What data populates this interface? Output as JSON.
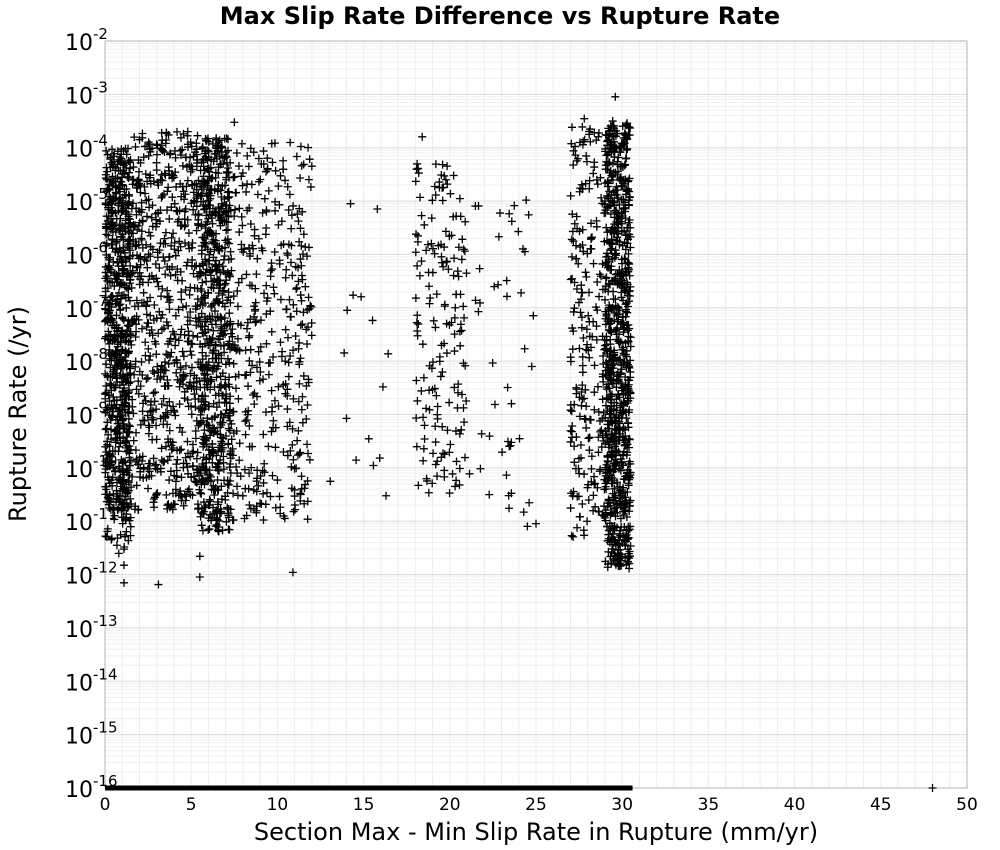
{
  "chart_data": {
    "type": "scatter",
    "title": "Max Slip Rate Difference vs Rupture Rate",
    "xlabel": "Section Max - Min Slip Rate in Rupture (mm/yr)",
    "ylabel": "Rupture Rate (/yr)",
    "xlim": [
      0,
      50
    ],
    "ylim": [
      1e-16,
      0.01
    ],
    "yscale": "log",
    "grid": true,
    "marker": "plus",
    "marker_color": "#000000",
    "x_ticks": [
      "0",
      "5",
      "10",
      "15",
      "20",
      "25",
      "30",
      "35",
      "40",
      "45",
      "50"
    ],
    "y_ticks": [
      {
        "base": "10",
        "exp": "-16"
      },
      {
        "base": "10",
        "exp": "-15"
      },
      {
        "base": "10",
        "exp": "-14"
      },
      {
        "base": "10",
        "exp": "-13"
      },
      {
        "base": "10",
        "exp": "-12"
      },
      {
        "base": "10",
        "exp": "-11"
      },
      {
        "base": "10",
        "exp": "-10"
      },
      {
        "base": "10",
        "exp": "-9"
      },
      {
        "base": "10",
        "exp": "-8"
      },
      {
        "base": "10",
        "exp": "-7"
      },
      {
        "base": "10",
        "exp": "-6"
      },
      {
        "base": "10",
        "exp": "-5"
      },
      {
        "base": "10",
        "exp": "-4"
      },
      {
        "base": "10",
        "exp": "-3"
      },
      {
        "base": "10",
        "exp": "-2"
      }
    ],
    "clusters": [
      {
        "x_range": [
          0,
          1.5
        ],
        "y_range_log10": [
          -10.8,
          -4
        ],
        "count": 700
      },
      {
        "x_range": [
          0,
          1.5
        ],
        "y_range_log10": [
          -11.5,
          -10.8
        ],
        "count": 25
      },
      {
        "x_range": [
          1.5,
          5.5
        ],
        "y_range_log10": [
          -10.8,
          -3.7
        ],
        "count": 650
      },
      {
        "x_range": [
          5.5,
          7.3
        ],
        "y_range_log10": [
          -11.2,
          -3.8
        ],
        "count": 650
      },
      {
        "x_range": [
          7.3,
          12
        ],
        "y_range_log10": [
          -11,
          -3.9
        ],
        "count": 380
      },
      {
        "x_range": [
          13,
          16.5
        ],
        "y_range_log10": [
          -10.5,
          -4.8
        ],
        "count": 14
      },
      {
        "x_range": [
          18,
          21
        ],
        "y_range_log10": [
          -10.5,
          -4.3
        ],
        "count": 170
      },
      {
        "x_range": [
          21,
          25
        ],
        "y_range_log10": [
          -11,
          -4.6
        ],
        "count": 45
      },
      {
        "x_range": [
          27,
          29
        ],
        "y_range_log10": [
          -11.3,
          -3.6
        ],
        "count": 220
      },
      {
        "x_range": [
          29,
          30.5
        ],
        "y_range_log10": [
          -11.9,
          -3.5
        ],
        "count": 850
      }
    ],
    "points": [
      {
        "x": 0.8,
        "y": 2.5e-12
      },
      {
        "x": 1.1,
        "y": 3e-12
      },
      {
        "x": 1.1,
        "y": 1.5e-12
      },
      {
        "x": 1.1,
        "y": 7e-13
      },
      {
        "x": 3.1,
        "y": 6.5e-13
      },
      {
        "x": 5.5,
        "y": 9e-13
      },
      {
        "x": 5.5,
        "y": 2.2e-12
      },
      {
        "x": 10.9,
        "y": 1.1e-12
      },
      {
        "x": 7.5,
        "y": 0.0003
      },
      {
        "x": 4.8,
        "y": 0.0002
      },
      {
        "x": 18.4,
        "y": 0.00016
      },
      {
        "x": 29.6,
        "y": 0.0009
      },
      {
        "x": 27.8,
        "y": 0.00035
      },
      {
        "x": 15.3,
        "y": 3.5e-10
      },
      {
        "x": 16.3,
        "y": 3e-11
      },
      {
        "x": 24.5,
        "y": 8e-12
      },
      {
        "x": 25.0,
        "y": 9e-12
      },
      {
        "x": 30.4,
        "y": 1.3e-12
      },
      {
        "x": 48.0,
        "y": 1e-16
      }
    ],
    "floor_band": {
      "x_range": [
        0,
        30.6
      ],
      "y": 1e-16
    }
  }
}
